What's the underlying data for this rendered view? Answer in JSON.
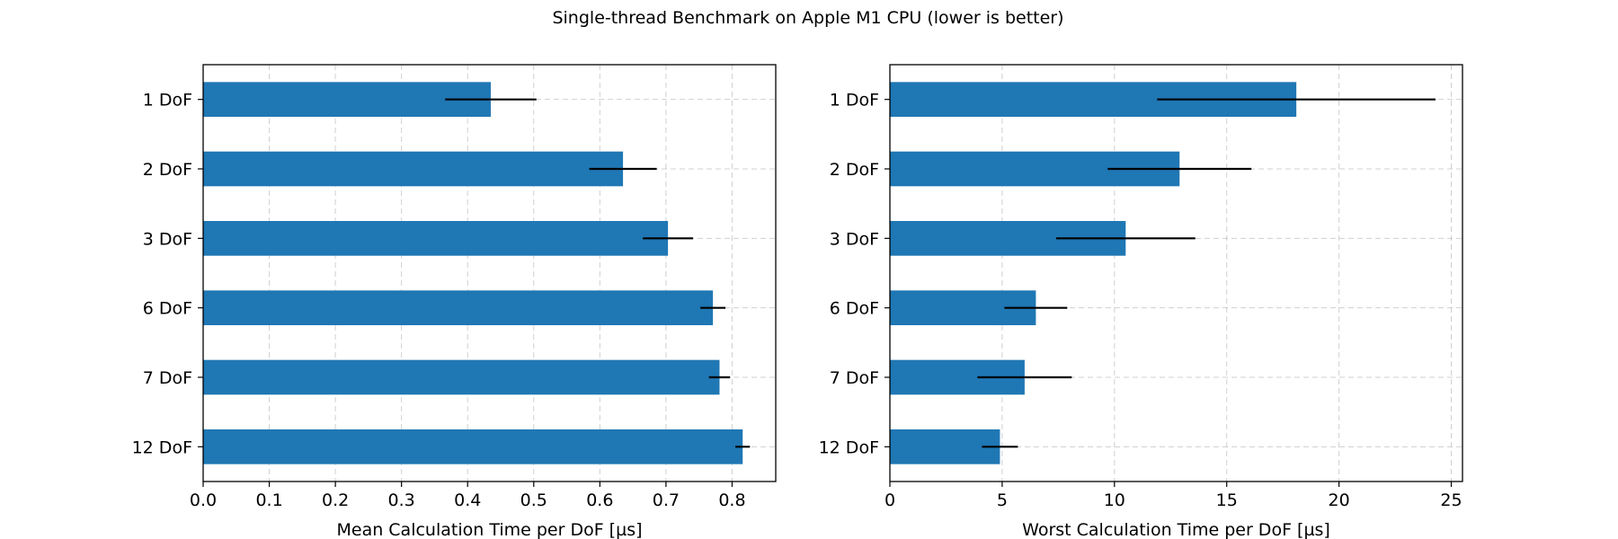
{
  "figure_title": "Single-thread Benchmark on Apple M1 CPU (lower is better)",
  "colors": {
    "bar": "#1f77b4",
    "error_bar": "#000000",
    "grid": "#b0b0b0",
    "axes": "#000000"
  },
  "chart_data": [
    {
      "type": "bar",
      "orientation": "horizontal",
      "categories": [
        "1 DoF",
        "2 DoF",
        "3 DoF",
        "6 DoF",
        "7 DoF",
        "12 DoF"
      ],
      "values": [
        0.435,
        0.635,
        0.703,
        0.771,
        0.781,
        0.816
      ],
      "errors": [
        0.069,
        0.051,
        0.038,
        0.019,
        0.016,
        0.011
      ],
      "xlabel": "Mean Calculation Time per DoF [µs]",
      "ylabel": "",
      "xlim": [
        0,
        0.866
      ],
      "xticks": [
        0.0,
        0.1,
        0.2,
        0.3,
        0.4,
        0.5,
        0.6,
        0.7,
        0.8
      ],
      "xtick_labels": [
        "0.0",
        "0.1",
        "0.2",
        "0.3",
        "0.4",
        "0.5",
        "0.6",
        "0.7",
        "0.8"
      ],
      "grid": true
    },
    {
      "type": "bar",
      "orientation": "horizontal",
      "categories": [
        "1 DoF",
        "2 DoF",
        "3 DoF",
        "6 DoF",
        "7 DoF",
        "12 DoF"
      ],
      "values": [
        18.1,
        12.9,
        10.5,
        6.5,
        6.0,
        4.9
      ],
      "errors": [
        6.2,
        3.2,
        3.1,
        1.4,
        2.1,
        0.8
      ],
      "xlabel": "Worst Calculation Time per DoF [µs]",
      "ylabel": "",
      "xlim": [
        0,
        25.5
      ],
      "xticks": [
        0,
        5,
        10,
        15,
        20,
        25
      ],
      "xtick_labels": [
        "0",
        "5",
        "10",
        "15",
        "20",
        "25"
      ],
      "grid": true
    }
  ]
}
